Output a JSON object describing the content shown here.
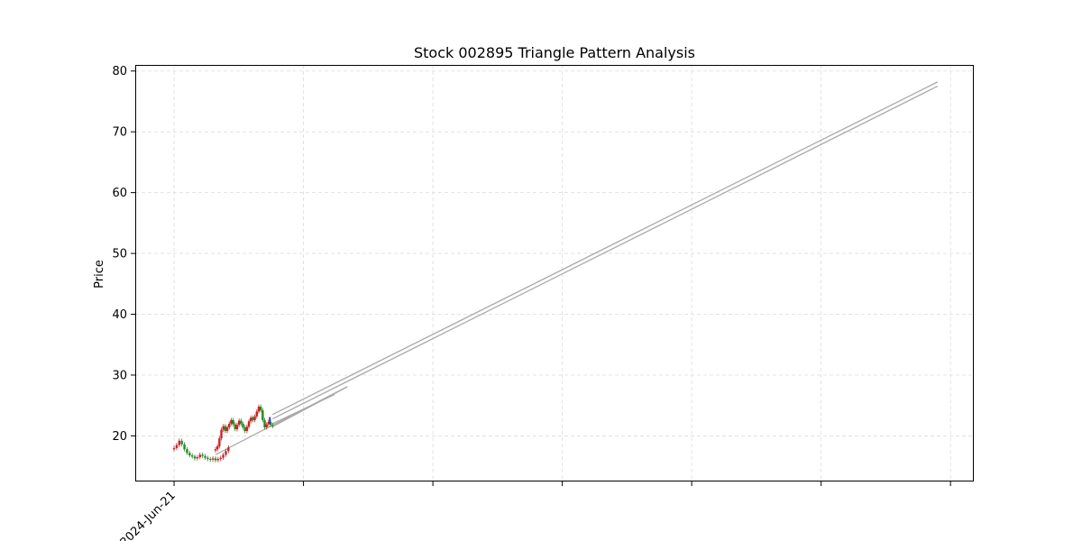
{
  "chart_data": {
    "type": "candlestick",
    "title": "Stock 002895 Triangle Pattern Analysis",
    "xlabel": "",
    "ylabel": "Price",
    "x_tick_labels": [
      "2024-Jun-21",
      "",
      "",
      "",
      "",
      "",
      ""
    ],
    "x_tick_index": [
      0,
      25,
      50,
      75,
      100,
      125,
      150
    ],
    "xlim": [
      -7.5,
      154.5
    ],
    "ylim": [
      12.5,
      81
    ],
    "yticks": [
      20,
      30,
      40,
      50,
      60,
      70,
      80
    ],
    "grid": true,
    "colors": {
      "up": "#cc2222",
      "down": "#228822",
      "trend": "#a8a8a8",
      "apex": "#2244cc"
    },
    "price_segments": [
      {
        "start_index": 0,
        "closes": [
          18,
          18.5,
          19.2,
          18.6,
          17.8,
          17.2,
          16.8,
          16.6,
          16.3,
          16.5,
          16.9,
          16.7,
          16.4,
          16.2,
          16.1,
          16.3,
          16.0,
          16.2,
          16.4,
          16.9,
          17.5,
          18.1
        ]
      },
      {
        "start_index": 8,
        "closes": [
          17.8,
          18.3,
          19.6,
          21.0,
          21.6,
          20.8,
          21.4,
          22.0,
          22.6,
          21.9,
          21.1,
          21.8,
          22.5,
          22.0,
          21.4,
          20.8,
          21.5,
          22.4,
          23.0,
          22.6,
          23.2,
          24.0,
          24.8,
          24.2,
          22.6,
          21.4,
          21.9,
          22.3,
          21.8,
          21.6
        ]
      }
    ],
    "trendlines": [
      {
        "x": [
          19,
          147.5
        ],
        "y": [
          23.5,
          78.2
        ]
      },
      {
        "x": [
          19,
          147.5
        ],
        "y": [
          22.8,
          77.5
        ]
      },
      {
        "x": [
          8,
          33.5
        ],
        "y": [
          16.9,
          28.1
        ]
      },
      {
        "x": [
          19,
          33.5
        ],
        "y": [
          21.5,
          28.1
        ]
      },
      {
        "x": [
          19,
          31
        ],
        "y": [
          22.0,
          26.8
        ]
      }
    ],
    "apex_markers": [
      {
        "x": 18.5,
        "y": [
          22.0,
          23.1
        ]
      }
    ]
  }
}
